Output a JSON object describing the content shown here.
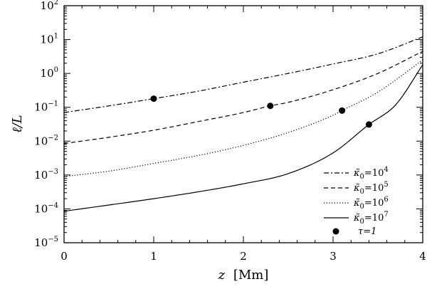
{
  "chart_data": {
    "type": "line",
    "title": "",
    "xlabel": {
      "symbol": "z",
      "unit": "[Mm]"
    },
    "ylabel": "ℓ/L",
    "xlim": [
      0,
      4
    ],
    "ylim": [
      1e-05,
      100
    ],
    "y_scale": "log",
    "grid": false,
    "legend_position": "bottom-right",
    "x_ticks": [
      {
        "value": 0,
        "label": "0"
      },
      {
        "value": 1,
        "label": "1"
      },
      {
        "value": 2,
        "label": "2"
      },
      {
        "value": 3,
        "label": "3"
      },
      {
        "value": 4,
        "label": "4"
      }
    ],
    "y_ticks": [
      {
        "exponent": -5,
        "base": "10",
        "exp": "−5"
      },
      {
        "exponent": -4,
        "base": "10",
        "exp": "−4"
      },
      {
        "exponent": -3,
        "base": "10",
        "exp": "−3"
      },
      {
        "exponent": -2,
        "base": "10",
        "exp": "−2"
      },
      {
        "exponent": -1,
        "base": "10",
        "exp": "−1"
      },
      {
        "exponent": 0,
        "base": "10",
        "exp": "0"
      },
      {
        "exponent": 1,
        "base": "10",
        "exp": "1"
      },
      {
        "exponent": 2,
        "base": "10",
        "exp": "2"
      }
    ],
    "series": [
      {
        "legend": {
          "symbol": "κ̃",
          "sub": "0",
          "eq": "=10",
          "exp": "4"
        },
        "line_style": "dashdot",
        "x": [
          0,
          0.5,
          1,
          1.5,
          2,
          2.5,
          3,
          3.5,
          4
        ],
        "y": [
          0.07,
          0.11,
          0.18,
          0.3,
          0.55,
          1.0,
          1.9,
          3.8,
          12
        ]
      },
      {
        "legend": {
          "symbol": "κ̃",
          "sub": "0",
          "eq": "=10",
          "exp": "5"
        },
        "line_style": "dashed",
        "x": [
          0,
          0.5,
          1,
          1.5,
          2,
          2.3,
          2.5,
          3,
          3.5,
          4
        ],
        "y": [
          0.0085,
          0.013,
          0.021,
          0.038,
          0.07,
          0.11,
          0.14,
          0.33,
          1.0,
          4.5
        ]
      },
      {
        "legend": {
          "symbol": "κ̃",
          "sub": "0",
          "eq": "=10",
          "exp": "6"
        },
        "line_style": "dotted",
        "x": [
          0,
          0.5,
          1,
          1.5,
          2,
          2.5,
          3,
          3.1,
          3.5,
          4
        ],
        "y": [
          0.0009,
          0.0013,
          0.0022,
          0.0038,
          0.0075,
          0.018,
          0.058,
          0.08,
          0.28,
          2.5
        ]
      },
      {
        "legend": {
          "symbol": "κ̃",
          "sub": "0",
          "eq": "=10",
          "exp": "7"
        },
        "line_style": "solid",
        "x": [
          0,
          0.5,
          1,
          1.5,
          2,
          2.5,
          3,
          3.4,
          3.7,
          4
        ],
        "y": [
          8.5e-05,
          0.00013,
          0.0002,
          0.00032,
          0.00055,
          0.0011,
          0.0045,
          0.031,
          0.12,
          1.8
        ]
      }
    ],
    "markers": {
      "legend": "τ=1",
      "points": [
        {
          "x": 1.0,
          "y": 0.18
        },
        {
          "x": 2.3,
          "y": 0.11
        },
        {
          "x": 3.1,
          "y": 0.08
        },
        {
          "x": 3.4,
          "y": 0.031
        }
      ]
    }
  }
}
